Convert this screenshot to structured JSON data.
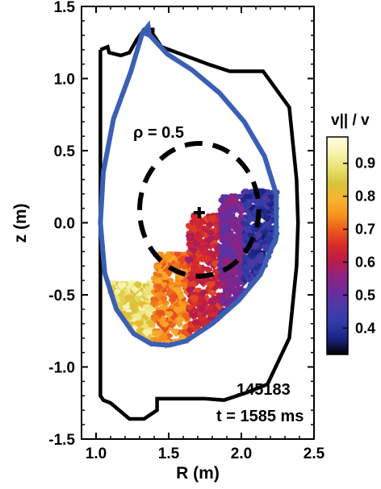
{
  "chart_data": {
    "type": "scatter",
    "xlabel": "R (m)",
    "ylabel": "z (m)",
    "xlim": [
      0.9,
      2.5
    ],
    "ylim": [
      -1.5,
      1.5
    ],
    "xticks": [
      {
        "v": 1.0,
        "label": "1.0"
      },
      {
        "v": 1.5,
        "label": "1.5"
      },
      {
        "v": 2.0,
        "label": "2.0"
      },
      {
        "v": 2.5,
        "label": "2.5"
      }
    ],
    "yticks": [
      {
        "v": 1.5,
        "label": "1.5"
      },
      {
        "v": 1.0,
        "label": "1.0"
      },
      {
        "v": 0.5,
        "label": "0.5"
      },
      {
        "v": 0.0,
        "label": "0.0"
      },
      {
        "v": -0.5,
        "label": "-0.5"
      },
      {
        "v": -1.0,
        "label": "-1.0"
      },
      {
        "v": -1.5,
        "label": "-1.5"
      }
    ],
    "colorbar": {
      "title": "v|| / v",
      "range": [
        0.32,
        0.98
      ],
      "ticks": [
        {
          "v": 0.9,
          "label": "0.9"
        },
        {
          "v": 0.8,
          "label": "0.8"
        },
        {
          "v": 0.7,
          "label": "0.7"
        },
        {
          "v": 0.6,
          "label": "0.6"
        },
        {
          "v": 0.5,
          "label": "0.5"
        },
        {
          "v": 0.4,
          "label": "0.4"
        }
      ],
      "colors": [
        "#000000",
        "#1a237e",
        "#2e3ca8",
        "#4a3aa8",
        "#6a2c9e",
        "#8e2384",
        "#b81c4a",
        "#d62a2a",
        "#ec5a1e",
        "#f7941d",
        "#f5b431",
        "#d8c43a",
        "#e8e070",
        "#f8f4b0",
        "#fffde8"
      ]
    },
    "separatrix": {
      "color": "#3a5fb5",
      "points": [
        [
          1.32,
          1.32
        ],
        [
          1.24,
          1.05
        ],
        [
          1.12,
          0.72
        ],
        [
          1.05,
          0.35
        ],
        [
          1.03,
          0.0
        ],
        [
          1.06,
          -0.35
        ],
        [
          1.14,
          -0.6
        ],
        [
          1.26,
          -0.77
        ],
        [
          1.38,
          -0.84
        ],
        [
          1.5,
          -0.85
        ],
        [
          1.62,
          -0.82
        ],
        [
          1.8,
          -0.7
        ],
        [
          1.98,
          -0.54
        ],
        [
          2.13,
          -0.36
        ],
        [
          2.24,
          -0.1
        ],
        [
          2.24,
          0.2
        ],
        [
          2.16,
          0.46
        ],
        [
          2.02,
          0.7
        ],
        [
          1.85,
          0.9
        ],
        [
          1.66,
          1.06
        ],
        [
          1.49,
          1.17
        ],
        [
          1.37,
          1.3
        ]
      ]
    },
    "wall": {
      "color": "#000000",
      "points": [
        [
          1.03,
          1.2
        ],
        [
          1.08,
          1.22
        ],
        [
          1.09,
          1.18
        ],
        [
          1.17,
          1.16
        ],
        [
          1.23,
          1.18
        ],
        [
          1.28,
          1.27
        ],
        [
          1.33,
          1.34
        ],
        [
          1.39,
          1.34
        ],
        [
          1.39,
          1.31
        ],
        [
          1.45,
          1.22
        ],
        [
          1.77,
          1.1
        ],
        [
          1.92,
          1.05
        ],
        [
          2.15,
          1.05
        ],
        [
          2.33,
          0.8
        ],
        [
          2.38,
          0.3
        ],
        [
          2.39,
          0.0
        ],
        [
          2.38,
          -0.3
        ],
        [
          2.33,
          -0.8
        ],
        [
          2.18,
          -1.12
        ],
        [
          2.03,
          -1.18
        ],
        [
          1.88,
          -1.23
        ],
        [
          1.75,
          -1.22
        ],
        [
          1.42,
          -1.22
        ],
        [
          1.42,
          -1.3
        ],
        [
          1.33,
          -1.36
        ],
        [
          1.23,
          -1.36
        ],
        [
          1.1,
          -1.25
        ],
        [
          1.05,
          -1.23
        ],
        [
          1.03,
          -1.2
        ],
        [
          1.03,
          1.2
        ]
      ]
    },
    "rho_contour": {
      "label": "ρ = 0.5",
      "center": [
        1.71,
        0.09
      ],
      "radii": [
        0.41,
        0.46
      ],
      "color": "#000000"
    },
    "axis_marker": {
      "R": 1.71,
      "z": 0.07
    },
    "scatter_regions": [
      {
        "R": [
          1.1,
          1.4
        ],
        "z_max": -0.42,
        "v_range": [
          0.8,
          0.94
        ]
      },
      {
        "R": [
          1.4,
          1.64
        ],
        "z_max": -0.22,
        "v_range": [
          0.68,
          0.78
        ]
      },
      {
        "R": [
          1.64,
          1.86
        ],
        "z_max": 0.05,
        "v_range": [
          0.58,
          0.68
        ]
      },
      {
        "R": [
          1.86,
          2.02
        ],
        "z_max": 0.18,
        "v_range": [
          0.48,
          0.58
        ]
      },
      {
        "R": [
          2.02,
          2.24
        ],
        "z_max": 0.22,
        "v_range": [
          0.36,
          0.48
        ]
      }
    ],
    "annotations": [
      "145183",
      "t = 1585 ms"
    ]
  }
}
